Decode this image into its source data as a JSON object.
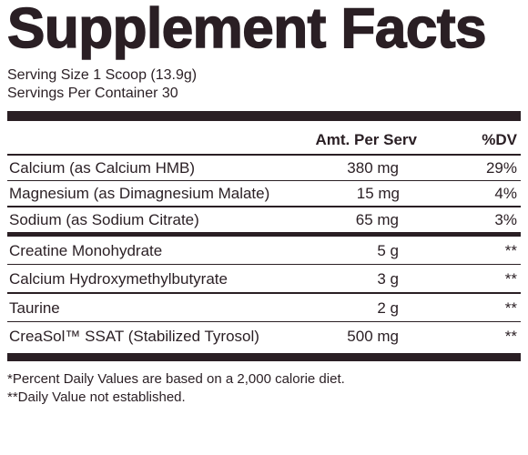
{
  "title": "Supplement Facts",
  "serving": [
    "Serving Size 1 Scoop (13.9g)",
    "Servings Per Container 30"
  ],
  "table": {
    "header": [
      "Amt. Per Serv",
      "%DV"
    ],
    "sections": [
      [
        [
          "Calcium (as Calcium HMB)",
          "380 mg",
          "29%"
        ],
        [
          "Magnesium (as Dimagnesium Malate)",
          "15 mg",
          "4%"
        ],
        [
          "Sodium (as Sodium Citrate)",
          "65 mg",
          "3%"
        ]
      ],
      [
        [
          "Creatine Monohydrate",
          "5 g",
          "**"
        ],
        [
          "Calcium Hydroxymethylbutyrate",
          "3 g",
          "**"
        ],
        [
          "Taurine",
          "2 g",
          "**"
        ],
        [
          "CreaSol™ SSAT (Stabilized Tyrosol)",
          "500 mg",
          "**"
        ]
      ]
    ]
  },
  "footnotes": [
    "*Percent Daily Values are based on a 2,000 calorie diet.",
    "**Daily Value not established."
  ]
}
